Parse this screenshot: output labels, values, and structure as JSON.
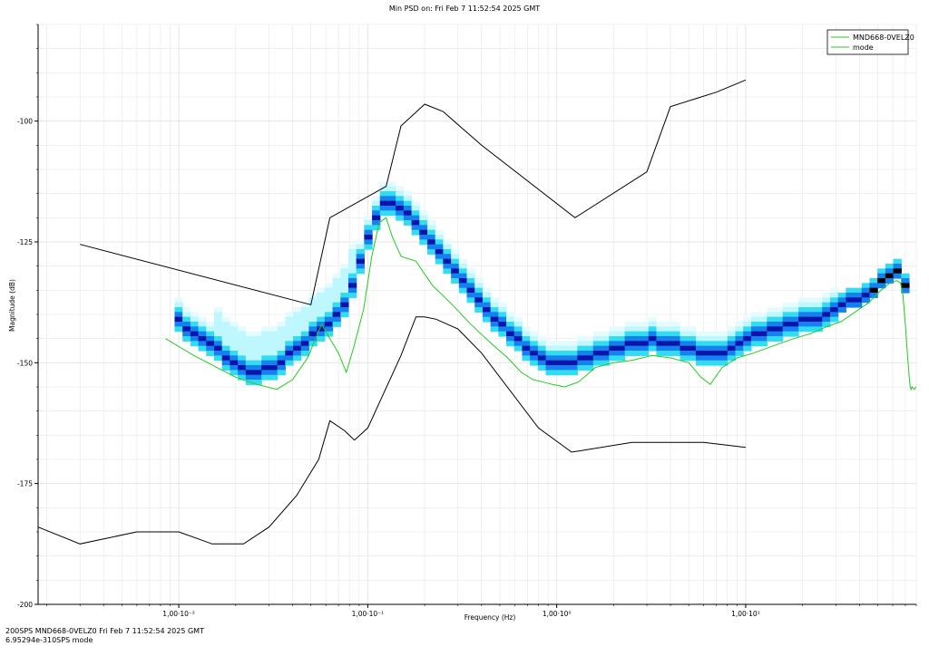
{
  "title": "Min PSD on: Fri Feb 7 11:52:54 2025 GMT",
  "footer": {
    "line1": "200SPS  MND668-0VELZ0 Fri Feb 7 11:52:54 2025 GMT",
    "line2": "6.95294e-310SPS  mode"
  },
  "colors": {
    "background": "#ffffff",
    "grid": "#e6e6e6",
    "model_lines": "#000000",
    "trace": "#22cc22",
    "pdf_low": "#bff7ff",
    "pdf_mid": "#33dcf0",
    "pdf_high": "#1580f0",
    "pdf_peak": "#0a14a8"
  },
  "chart_data": {
    "type": "line",
    "title": "Min PSD on: Fri Feb 7 11:52:54 2025 GMT",
    "xlabel": "Frequency (Hz)",
    "ylabel": "Magnitude (dB)",
    "x_scale": "log",
    "xlim": [
      0.0018,
      80
    ],
    "ylim": [
      -200,
      -80
    ],
    "x_tick_labels": [
      "1,00·10⁻²",
      "1,00·10⁻¹",
      "1,00·10⁰",
      "1,00·10¹"
    ],
    "x_tick_values": [
      0.01,
      0.1,
      1,
      10
    ],
    "y_tick_labels": [
      "-100",
      "-125",
      "-150",
      "-175",
      "-200"
    ],
    "y_tick_values": [
      -100,
      -125,
      -150,
      -175,
      -200
    ],
    "grid": true,
    "legend": {
      "placement": "top-right",
      "entries": [
        "MND668-0VELZ0",
        "mode"
      ]
    },
    "series": [
      {
        "name": "MND668-0VELZ0",
        "color": "#22cc22",
        "x": [
          0.0085,
          0.012,
          0.02,
          0.026,
          0.033,
          0.04,
          0.048,
          0.057,
          0.063,
          0.07,
          0.077,
          0.084,
          0.095,
          0.105,
          0.115,
          0.125,
          0.135,
          0.15,
          0.18,
          0.22,
          0.28,
          0.35,
          0.45,
          0.55,
          0.65,
          0.75,
          0.85,
          0.95,
          1.1,
          1.3,
          1.6,
          2.0,
          2.5,
          3.2,
          4.0,
          5.0,
          5.8,
          6.5,
          7.5,
          9.0,
          11,
          14,
          18,
          22,
          27,
          32,
          38,
          45,
          52,
          58,
          63,
          66,
          68,
          70,
          72,
          74,
          75,
          76,
          78,
          80
        ],
        "y": [
          -145,
          -148.5,
          -153,
          -154.5,
          -155.5,
          -153.5,
          -149,
          -142,
          -145,
          -148,
          -152,
          -147,
          -139,
          -128,
          -121,
          -120,
          -124,
          -128,
          -129,
          -134,
          -138,
          -142,
          -146,
          -149,
          -152,
          -153.5,
          -154,
          -154.5,
          -155,
          -154,
          -151,
          -150,
          -149.5,
          -148.5,
          -149,
          -150,
          -153,
          -154.5,
          -151,
          -149,
          -148,
          -146.5,
          -145,
          -144,
          -142.5,
          -141.5,
          -139.5,
          -137.5,
          -135,
          -133.5,
          -133,
          -133.5,
          -136,
          -142,
          -149,
          -154.5,
          -155.5,
          -155,
          -155.5,
          -155
        ]
      },
      {
        "name": "mode",
        "color": "#0a14a8",
        "x": [
          0.01,
          0.012,
          0.014,
          0.017,
          0.02,
          0.024,
          0.028,
          0.033,
          0.038,
          0.045,
          0.052,
          0.06,
          0.07,
          0.08,
          0.09,
          0.1,
          0.11,
          0.12,
          0.135,
          0.15,
          0.18,
          0.22,
          0.28,
          0.35,
          0.45,
          0.55,
          0.7,
          0.85,
          1.0,
          1.2,
          1.5,
          2.0,
          2.5,
          3.0,
          3.5,
          4.0,
          5.0,
          6.0,
          7.0,
          8.0,
          10,
          13,
          16,
          20,
          25,
          30,
          40,
          50,
          60,
          65,
          68,
          70
        ],
        "y": [
          -141.5,
          -144,
          -146,
          -148,
          -150,
          -152,
          -151.5,
          -150.5,
          -148.5,
          -146,
          -144,
          -142,
          -140,
          -136,
          -130,
          -124,
          -120,
          -117.5,
          -117,
          -118,
          -121,
          -125,
          -130,
          -135,
          -140,
          -143.5,
          -147,
          -149.5,
          -150.5,
          -150,
          -148.5,
          -147,
          -146,
          -145.5,
          -145.5,
          -146,
          -147,
          -148.5,
          -148.5,
          -147.5,
          -145,
          -143.5,
          -142.5,
          -141.5,
          -140.5,
          -139,
          -136.5,
          -134,
          -132,
          -131,
          -133,
          -134
        ]
      },
      {
        "name": "",
        "color": "#000000",
        "x": [
          0.003,
          0.05,
          0.063,
          0.125,
          0.15,
          0.2,
          0.25,
          0.4,
          1.25,
          3.0,
          4.0,
          7.0,
          10
        ],
        "y": [
          -125.5,
          -138,
          -120,
          -113.5,
          -101,
          -96.5,
          -98,
          -105,
          -120,
          -110.5,
          -97,
          -94,
          -91.5
        ]
      },
      {
        "name": "",
        "color": "#000000",
        "x": [
          0.0018,
          0.003,
          0.006,
          0.01,
          0.015,
          0.022,
          0.03,
          0.042,
          0.055,
          0.063,
          0.075,
          0.085,
          0.1,
          0.15,
          0.18,
          0.2,
          0.23,
          0.3,
          0.4,
          0.8,
          1.2,
          2.5,
          6.0,
          10
        ],
        "y": [
          -184,
          -187.5,
          -185,
          -185,
          -187.5,
          -187.5,
          -184,
          -177.5,
          -170,
          -162,
          -164,
          -166,
          -163.5,
          -148.5,
          -140.5,
          -140.5,
          -141,
          -143,
          -148,
          -163.5,
          -168.5,
          -166.5,
          -166.5,
          -167.5
        ]
      }
    ]
  }
}
